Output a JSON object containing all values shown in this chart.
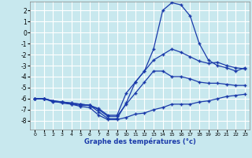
{
  "background_color": "#c8e8ee",
  "grid_color": "#ffffff",
  "line_color": "#1a3aaa",
  "xlabel": "Graphe des températures (°c)",
  "xlim": [
    -0.5,
    23.5
  ],
  "ylim": [
    -8.8,
    2.8
  ],
  "xticks": [
    0,
    1,
    2,
    3,
    4,
    5,
    6,
    7,
    8,
    9,
    10,
    11,
    12,
    13,
    14,
    15,
    16,
    17,
    18,
    19,
    20,
    21,
    22,
    23
  ],
  "yticks": [
    -8,
    -7,
    -6,
    -5,
    -4,
    -3,
    -2,
    -1,
    0,
    1,
    2
  ],
  "curve_max_x": [
    0,
    1,
    2,
    3,
    4,
    5,
    6,
    7,
    8,
    9,
    10,
    11,
    12,
    13,
    14,
    15,
    16,
    17,
    18,
    19,
    20,
    21,
    22,
    23
  ],
  "curve_max_y": [
    -6.0,
    -6.0,
    -6.3,
    -6.3,
    -6.5,
    -6.6,
    -6.6,
    -7.2,
    -7.8,
    -7.8,
    -6.4,
    -4.5,
    -3.5,
    -1.5,
    2.0,
    2.7,
    2.5,
    1.5,
    -1.0,
    -2.5,
    -3.0,
    -3.2,
    -3.5,
    -3.2
  ],
  "curve_min_x": [
    0,
    1,
    2,
    3,
    4,
    5,
    6,
    7,
    8,
    9,
    10,
    11,
    12,
    13,
    14,
    15,
    16,
    17,
    18,
    19,
    20,
    21,
    22,
    23
  ],
  "curve_min_y": [
    -6.0,
    -6.0,
    -6.2,
    -6.4,
    -6.5,
    -6.7,
    -6.8,
    -7.5,
    -7.9,
    -7.9,
    -7.7,
    -7.4,
    -7.3,
    -7.0,
    -6.8,
    -6.5,
    -6.5,
    -6.5,
    -6.3,
    -6.2,
    -6.0,
    -5.8,
    -5.7,
    -5.6
  ],
  "curve_mid1_x": [
    0,
    1,
    2,
    3,
    4,
    5,
    6,
    7,
    8,
    9,
    10,
    11,
    12,
    13,
    14,
    15,
    16,
    17,
    18,
    19,
    20,
    21,
    22,
    23
  ],
  "curve_mid1_y": [
    -6.0,
    -6.0,
    -6.2,
    -6.3,
    -6.4,
    -6.5,
    -6.6,
    -6.9,
    -7.5,
    -7.5,
    -5.5,
    -4.5,
    -3.5,
    -2.5,
    -2.0,
    -1.5,
    -1.8,
    -2.2,
    -2.6,
    -2.8,
    -2.7,
    -3.0,
    -3.2,
    -3.3
  ],
  "curve_mid2_x": [
    0,
    1,
    2,
    3,
    4,
    5,
    6,
    7,
    8,
    9,
    10,
    11,
    12,
    13,
    14,
    15,
    16,
    17,
    18,
    19,
    20,
    21,
    22,
    23
  ],
  "curve_mid2_y": [
    -6.0,
    -6.0,
    -6.2,
    -6.3,
    -6.4,
    -6.5,
    -6.6,
    -7.0,
    -7.6,
    -7.6,
    -6.5,
    -5.5,
    -4.5,
    -3.5,
    -3.5,
    -4.0,
    -4.0,
    -4.2,
    -4.5,
    -4.6,
    -4.6,
    -4.7,
    -4.8,
    -4.8
  ]
}
